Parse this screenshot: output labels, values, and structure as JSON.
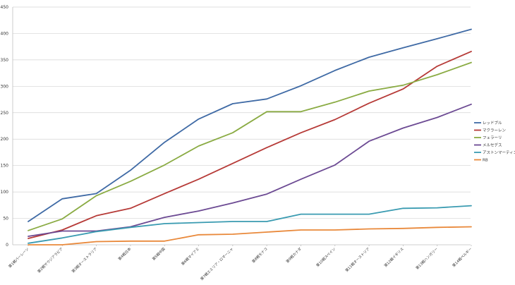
{
  "chart_data": {
    "type": "line",
    "title": "",
    "xlabel": "",
    "ylabel": "",
    "ylim": [
      0,
      450
    ],
    "yticks": [
      0,
      50,
      100,
      150,
      200,
      250,
      300,
      350,
      400,
      450
    ],
    "grid": true,
    "legend_position": "right",
    "categories": [
      "第1戦バーレーン",
      "第2戦サウジアラビア",
      "第3戦オーストラリア",
      "第4戦日本",
      "第5戦中国",
      "第6戦マイアミ",
      "第7戦エミリア・ロマーニャ",
      "第8戦モナコ",
      "第9戦カナダ",
      "第10戦スペイン",
      "第11戦オーストリア",
      "第12戦イギリス",
      "第13戦ハンガリー",
      "第14戦ベルギー"
    ],
    "series": [
      {
        "name": "レッドブル",
        "color": "#3f6aa5",
        "values": [
          44,
          87,
          97,
          141,
          194,
          238,
          267,
          276,
          301,
          330,
          355,
          373,
          390,
          408
        ]
      },
      {
        "name": "マクラーレン",
        "color": "#b63a37",
        "values": [
          12,
          28,
          55,
          69,
          97,
          124,
          154,
          184,
          212,
          237,
          268,
          295,
          338,
          366
        ]
      },
      {
        "name": "フェラーリ",
        "color": "#8aab43",
        "values": [
          27,
          49,
          93,
          120,
          151,
          187,
          212,
          252,
          252,
          270,
          291,
          302,
          322,
          345
        ]
      },
      {
        "name": "メルセデス",
        "color": "#6c4a93",
        "values": [
          16,
          26,
          26,
          34,
          52,
          64,
          79,
          96,
          124,
          151,
          196,
          221,
          241,
          266
        ]
      },
      {
        "name": "アストンマーティン",
        "color": "#3a9bb1",
        "values": [
          3,
          13,
          25,
          33,
          40,
          42,
          44,
          44,
          58,
          58,
          58,
          69,
          70,
          74
        ]
      },
      {
        "name": "RB",
        "color": "#e9893b",
        "values": [
          0,
          0,
          6,
          7,
          7,
          19,
          20,
          24,
          28,
          28,
          30,
          31,
          33,
          34
        ]
      }
    ]
  }
}
